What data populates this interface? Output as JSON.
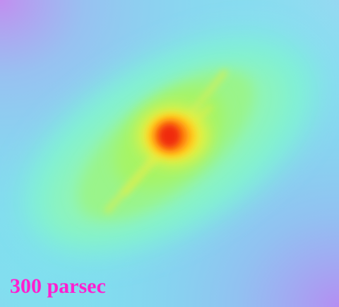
{
  "scale_label": "300 parsec"
}
